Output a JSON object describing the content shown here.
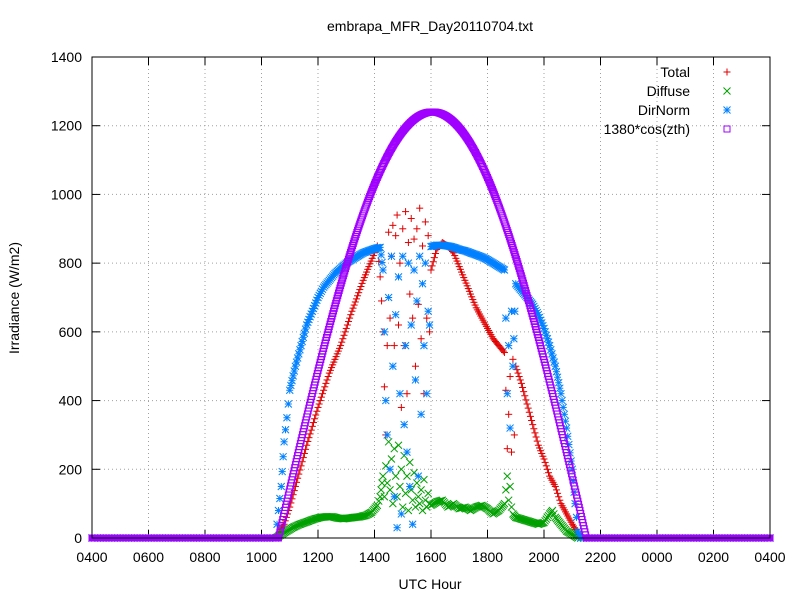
{
  "chart_data": {
    "type": "scatter",
    "title": "embrapa_MFR_Day20110704.txt",
    "xlabel": "UTC Hour",
    "ylabel": "Irradiance (W/m2)",
    "x_tick_labels": [
      "0400",
      "0600",
      "0800",
      "1000",
      "1200",
      "1400",
      "1600",
      "1800",
      "2000",
      "2200",
      "0000",
      "0200",
      "0400"
    ],
    "x_range_hours": [
      4,
      28
    ],
    "ylim": [
      0,
      1400
    ],
    "y_ticks": [
      0,
      200,
      400,
      600,
      800,
      1000,
      1200,
      1400
    ],
    "grid": true,
    "legend_position": "top-right",
    "series": [
      {
        "name": "Total",
        "marker": "+",
        "color": "#e00000",
        "points": [
          [
            10.5,
            0
          ],
          [
            10.8,
            40
          ],
          [
            11.0,
            90
          ],
          [
            11.2,
            150
          ],
          [
            11.4,
            210
          ],
          [
            11.6,
            270
          ],
          [
            11.8,
            325
          ],
          [
            12.0,
            380
          ],
          [
            12.2,
            430
          ],
          [
            12.4,
            480
          ],
          [
            12.6,
            520
          ],
          [
            12.8,
            560
          ],
          [
            13.0,
            610
          ],
          [
            13.2,
            660
          ],
          [
            13.4,
            705
          ],
          [
            13.6,
            750
          ],
          [
            13.8,
            790
          ],
          [
            14.0,
            830
          ],
          [
            14.1,
            850
          ],
          [
            14.2,
            760
          ],
          [
            14.25,
            690
          ],
          [
            14.3,
            600
          ],
          [
            14.35,
            440
          ],
          [
            14.4,
            300
          ],
          [
            14.45,
            560
          ],
          [
            14.5,
            890
          ],
          [
            14.55,
            640
          ],
          [
            14.6,
            820
          ],
          [
            14.65,
            910
          ],
          [
            14.7,
            560
          ],
          [
            14.75,
            880
          ],
          [
            14.8,
            940
          ],
          [
            14.85,
            620
          ],
          [
            14.9,
            800
          ],
          [
            14.95,
            380
          ],
          [
            15.0,
            900
          ],
          [
            15.05,
            560
          ],
          [
            15.1,
            950
          ],
          [
            15.15,
            420
          ],
          [
            15.2,
            860
          ],
          [
            15.25,
            710
          ],
          [
            15.3,
            930
          ],
          [
            15.35,
            640
          ],
          [
            15.4,
            870
          ],
          [
            15.45,
            500
          ],
          [
            15.5,
            900
          ],
          [
            15.55,
            680
          ],
          [
            15.6,
            960
          ],
          [
            15.65,
            580
          ],
          [
            15.7,
            850
          ],
          [
            15.75,
            420
          ],
          [
            15.8,
            920
          ],
          [
            15.85,
            640
          ],
          [
            15.9,
            880
          ],
          [
            15.95,
            600
          ],
          [
            16.0,
            780
          ],
          [
            16.2,
            840
          ],
          [
            16.4,
            860
          ],
          [
            16.6,
            850
          ],
          [
            16.8,
            830
          ],
          [
            17.0,
            790
          ],
          [
            17.2,
            750
          ],
          [
            17.4,
            710
          ],
          [
            17.6,
            670
          ],
          [
            17.8,
            640
          ],
          [
            18.0,
            610
          ],
          [
            18.2,
            580
          ],
          [
            18.4,
            560
          ],
          [
            18.6,
            540
          ],
          [
            18.65,
            430
          ],
          [
            18.7,
            260
          ],
          [
            18.75,
            360
          ],
          [
            18.8,
            470
          ],
          [
            18.85,
            250
          ],
          [
            18.9,
            520
          ],
          [
            18.95,
            300
          ],
          [
            19.0,
            500
          ],
          [
            19.2,
            450
          ],
          [
            19.4,
            390
          ],
          [
            19.6,
            330
          ],
          [
            19.8,
            270
          ],
          [
            20.0,
            230
          ],
          [
            20.2,
            180
          ],
          [
            20.4,
            150
          ],
          [
            20.6,
            100
          ],
          [
            20.8,
            70
          ],
          [
            21.0,
            40
          ],
          [
            21.2,
            15
          ],
          [
            21.3,
            0
          ]
        ]
      },
      {
        "name": "Diffuse",
        "marker": "x",
        "color": "#00a000",
        "points": [
          [
            10.5,
            0
          ],
          [
            10.7,
            10
          ],
          [
            10.9,
            20
          ],
          [
            11.1,
            30
          ],
          [
            11.3,
            38
          ],
          [
            11.5,
            44
          ],
          [
            11.7,
            50
          ],
          [
            11.9,
            56
          ],
          [
            12.1,
            60
          ],
          [
            12.3,
            62
          ],
          [
            12.5,
            62
          ],
          [
            12.7,
            58
          ],
          [
            12.9,
            56
          ],
          [
            13.1,
            58
          ],
          [
            13.3,
            60
          ],
          [
            13.5,
            62
          ],
          [
            13.7,
            66
          ],
          [
            13.9,
            75
          ],
          [
            14.1,
            95
          ],
          [
            14.2,
            120
          ],
          [
            14.3,
            180
          ],
          [
            14.35,
            120
          ],
          [
            14.4,
            210
          ],
          [
            14.45,
            160
          ],
          [
            14.5,
            280
          ],
          [
            14.55,
            140
          ],
          [
            14.6,
            230
          ],
          [
            14.65,
            100
          ],
          [
            14.7,
            260
          ],
          [
            14.75,
            180
          ],
          [
            14.8,
            120
          ],
          [
            14.85,
            270
          ],
          [
            14.9,
            150
          ],
          [
            14.95,
            200
          ],
          [
            15.0,
            90
          ],
          [
            15.05,
            240
          ],
          [
            15.1,
            130
          ],
          [
            15.15,
            180
          ],
          [
            15.2,
            80
          ],
          [
            15.25,
            220
          ],
          [
            15.3,
            140
          ],
          [
            15.35,
            110
          ],
          [
            15.4,
            190
          ],
          [
            15.45,
            90
          ],
          [
            15.5,
            160
          ],
          [
            15.55,
            120
          ],
          [
            15.6,
            100
          ],
          [
            15.65,
            140
          ],
          [
            15.7,
            80
          ],
          [
            15.75,
            170
          ],
          [
            15.8,
            110
          ],
          [
            15.85,
            90
          ],
          [
            15.9,
            130
          ],
          [
            15.95,
            100
          ],
          [
            16.0,
            95
          ],
          [
            16.2,
            105
          ],
          [
            16.4,
            110
          ],
          [
            16.6,
            90
          ],
          [
            16.8,
            100
          ],
          [
            17.0,
            85
          ],
          [
            17.2,
            90
          ],
          [
            17.4,
            80
          ],
          [
            17.6,
            90
          ],
          [
            17.8,
            95
          ],
          [
            18.0,
            85
          ],
          [
            18.2,
            70
          ],
          [
            18.4,
            80
          ],
          [
            18.6,
            100
          ],
          [
            18.65,
            140
          ],
          [
            18.7,
            180
          ],
          [
            18.75,
            110
          ],
          [
            18.8,
            150
          ],
          [
            18.85,
            90
          ],
          [
            18.9,
            70
          ],
          [
            19.0,
            60
          ],
          [
            19.2,
            55
          ],
          [
            19.4,
            50
          ],
          [
            19.6,
            45
          ],
          [
            19.8,
            40
          ],
          [
            20.0,
            45
          ],
          [
            20.2,
            70
          ],
          [
            20.3,
            80
          ],
          [
            20.4,
            60
          ],
          [
            20.6,
            40
          ],
          [
            20.8,
            20
          ],
          [
            21.0,
            10
          ],
          [
            21.2,
            0
          ]
        ]
      },
      {
        "name": "DirNorm",
        "marker": "*",
        "color": "#0080ff",
        "points": [
          [
            10.5,
            0
          ],
          [
            10.6,
            80
          ],
          [
            10.7,
            150
          ],
          [
            10.8,
            280
          ],
          [
            10.9,
            350
          ],
          [
            11.0,
            430
          ],
          [
            11.2,
            500
          ],
          [
            11.4,
            560
          ],
          [
            11.6,
            620
          ],
          [
            11.8,
            660
          ],
          [
            12.0,
            700
          ],
          [
            12.2,
            730
          ],
          [
            12.4,
            750
          ],
          [
            12.6,
            770
          ],
          [
            12.8,
            785
          ],
          [
            13.0,
            800
          ],
          [
            13.2,
            810
          ],
          [
            13.4,
            820
          ],
          [
            13.6,
            830
          ],
          [
            13.8,
            836
          ],
          [
            14.0,
            842
          ],
          [
            14.2,
            846
          ],
          [
            14.3,
            780
          ],
          [
            14.35,
            600
          ],
          [
            14.4,
            400
          ],
          [
            14.45,
            300
          ],
          [
            14.5,
            700
          ],
          [
            14.55,
            200
          ],
          [
            14.6,
            820
          ],
          [
            14.65,
            500
          ],
          [
            14.7,
            120
          ],
          [
            14.75,
            650
          ],
          [
            14.8,
            30
          ],
          [
            14.85,
            760
          ],
          [
            14.9,
            420
          ],
          [
            14.95,
            70
          ],
          [
            15.0,
            820
          ],
          [
            15.05,
            330
          ],
          [
            15.1,
            560
          ],
          [
            15.15,
            250
          ],
          [
            15.2,
            800
          ],
          [
            15.25,
            150
          ],
          [
            15.3,
            620
          ],
          [
            15.35,
            40
          ],
          [
            15.4,
            780
          ],
          [
            15.45,
            460
          ],
          [
            15.5,
            690
          ],
          [
            15.55,
            180
          ],
          [
            15.6,
            820
          ],
          [
            15.65,
            360
          ],
          [
            15.7,
            740
          ],
          [
            15.75,
            560
          ],
          [
            15.8,
            800
          ],
          [
            15.85,
            420
          ],
          [
            15.9,
            660
          ],
          [
            15.95,
            620
          ],
          [
            16.0,
            848
          ],
          [
            16.2,
            852
          ],
          [
            16.4,
            852
          ],
          [
            16.6,
            850
          ],
          [
            16.8,
            846
          ],
          [
            17.0,
            840
          ],
          [
            17.2,
            836
          ],
          [
            17.4,
            830
          ],
          [
            17.6,
            824
          ],
          [
            17.8,
            818
          ],
          [
            18.0,
            810
          ],
          [
            18.2,
            800
          ],
          [
            18.4,
            790
          ],
          [
            18.6,
            780
          ],
          [
            18.65,
            640
          ],
          [
            18.7,
            420
          ],
          [
            18.75,
            560
          ],
          [
            18.8,
            320
          ],
          [
            18.85,
            660
          ],
          [
            18.9,
            500
          ],
          [
            19.0,
            740
          ],
          [
            19.2,
            720
          ],
          [
            19.4,
            700
          ],
          [
            19.6,
            680
          ],
          [
            19.8,
            650
          ],
          [
            20.0,
            610
          ],
          [
            20.2,
            560
          ],
          [
            20.4,
            500
          ],
          [
            20.6,
            420
          ],
          [
            20.8,
            320
          ],
          [
            21.0,
            200
          ],
          [
            21.1,
            100
          ],
          [
            21.2,
            20
          ],
          [
            21.3,
            0
          ]
        ]
      },
      {
        "name": "1380*cos(zth)",
        "marker": "square",
        "color": "#a000ff",
        "sunrise_hour": 10.6,
        "sunset_hour": 21.5,
        "peak_hour": 16.05,
        "peak_value": 1240
      }
    ]
  }
}
